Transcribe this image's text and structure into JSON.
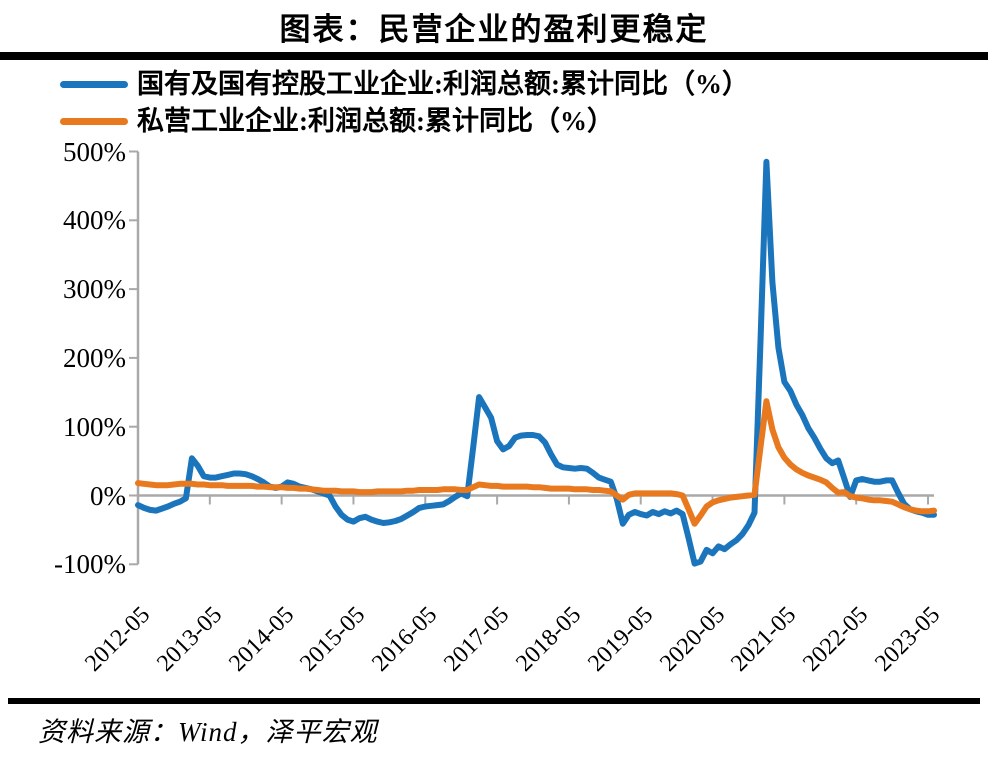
{
  "title": "图表：民营企业的盈利更稳定",
  "source": "资料来源：Wind，泽平宏观",
  "legend": [
    {
      "label": "国有及国有控股工业企业:利润总额:累计同比（%）",
      "color": "#1B75BC"
    },
    {
      "label": "私营工业企业:利润总额:累计同比（%）",
      "color": "#E8791E"
    }
  ],
  "chart_data": {
    "type": "line",
    "x_start": "2012-05",
    "x_freq": "monthly",
    "x_tick_labels": [
      "2012-05",
      "2013-05",
      "2014-05",
      "2015-05",
      "2016-05",
      "2017-05",
      "2018-05",
      "2019-05",
      "2020-05",
      "2021-05",
      "2022-05",
      "2023-05"
    ],
    "y_tick_labels": [
      "500%",
      "400%",
      "300%",
      "200%",
      "100%",
      "0%",
      "-100%"
    ],
    "y_ticks": [
      500,
      400,
      300,
      200,
      100,
      0,
      -100
    ],
    "ylim": [
      -100,
      500
    ],
    "y_unit": "%",
    "grid": "zero-line-only",
    "legend_position": "top-left",
    "axis_color": "#A9A9A9",
    "series": [
      {
        "name": "国有及国有控股工业企业:利润总额:累计同比（%）",
        "color": "#1B75BC",
        "values": [
          -14,
          -18,
          -21,
          -22,
          -19,
          -16,
          -12,
          -9,
          -4,
          54,
          43,
          28,
          26,
          26,
          28,
          30,
          32,
          32,
          31,
          28,
          24,
          19,
          13,
          11,
          13,
          19,
          17,
          13,
          11,
          9,
          6,
          3,
          0,
          -16,
          -28,
          -35,
          -38,
          -33,
          -31,
          -35,
          -38,
          -40,
          -39,
          -37,
          -34,
          -29,
          -24,
          -18,
          -16,
          -15,
          -14,
          -13,
          -8,
          -2,
          3,
          -1,
          70,
          143,
          128,
          113,
          79,
          67,
          72,
          84,
          87,
          88,
          88,
          86,
          77,
          60,
          45,
          41,
          40,
          39,
          40,
          39,
          33,
          26,
          23,
          20,
          -5,
          -41,
          -28,
          -24,
          -27,
          -29,
          -24,
          -27,
          -23,
          -26,
          -22,
          -27,
          -62,
          -99,
          -96,
          -79,
          -84,
          -74,
          -78,
          -71,
          -65,
          -56,
          -43,
          -25,
          220,
          485,
          310,
          215,
          165,
          152,
          132,
          117,
          98,
          84,
          68,
          54,
          47,
          51,
          25,
          -2,
          22,
          24,
          22,
          20,
          20,
          22,
          22,
          4,
          -12,
          -20,
          -23,
          -25,
          -28,
          -28
        ]
      },
      {
        "name": "私营工业企业:利润总额:累计同比（%）",
        "color": "#E8791E",
        "values": [
          18,
          17,
          16,
          15,
          15,
          15,
          16,
          17,
          17,
          17,
          16,
          16,
          15,
          15,
          15,
          14,
          14,
          14,
          14,
          14,
          13,
          13,
          12,
          12,
          12,
          11,
          11,
          10,
          10,
          9,
          8,
          7,
          7,
          7,
          6,
          6,
          6,
          5,
          5,
          5,
          6,
          6,
          6,
          6,
          6,
          7,
          7,
          8,
          8,
          8,
          8,
          9,
          9,
          9,
          8,
          8,
          12,
          16,
          15,
          14,
          14,
          13,
          13,
          13,
          13,
          13,
          12,
          12,
          11,
          10,
          10,
          10,
          10,
          9,
          9,
          9,
          8,
          8,
          7,
          6,
          0,
          -6,
          1,
          3,
          3,
          3,
          3,
          3,
          3,
          3,
          2,
          0,
          -20,
          -41,
          -29,
          -16,
          -10,
          -7,
          -5,
          -3,
          -2,
          -1,
          0,
          1,
          69,
          137,
          96,
          70,
          55,
          45,
          38,
          33,
          29,
          26,
          23,
          19,
          11,
          4,
          5,
          -1,
          -3,
          -4,
          -6,
          -7,
          -7,
          -8,
          -9,
          -13,
          -17,
          -20,
          -22,
          -23,
          -23,
          -22
        ]
      }
    ]
  }
}
